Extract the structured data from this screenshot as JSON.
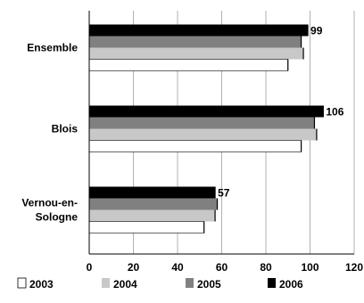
{
  "chart_data": {
    "type": "bar",
    "orientation": "horizontal",
    "title": "",
    "xlabel": "",
    "ylabel": "",
    "xlim": [
      0,
      120
    ],
    "x_ticks": [
      0,
      20,
      40,
      60,
      80,
      100,
      120
    ],
    "grid": "vertical",
    "legend_position": "bottom",
    "categories": [
      "Ensemble",
      "Blois",
      "Vernou-en-\nSologne"
    ],
    "series": [
      {
        "name": "2003",
        "color": "#ffffff",
        "values": [
          90,
          96,
          52
        ]
      },
      {
        "name": "2004",
        "color": "#c8c8c8",
        "values": [
          97,
          103,
          57
        ]
      },
      {
        "name": "2005",
        "color": "#808080",
        "values": [
          96,
          102,
          58
        ]
      },
      {
        "name": "2006",
        "color": "#000000",
        "values": [
          99,
          106,
          57
        ]
      }
    ],
    "data_labels": [
      {
        "series": "2006",
        "values": [
          "99",
          "106",
          "57"
        ]
      }
    ]
  }
}
